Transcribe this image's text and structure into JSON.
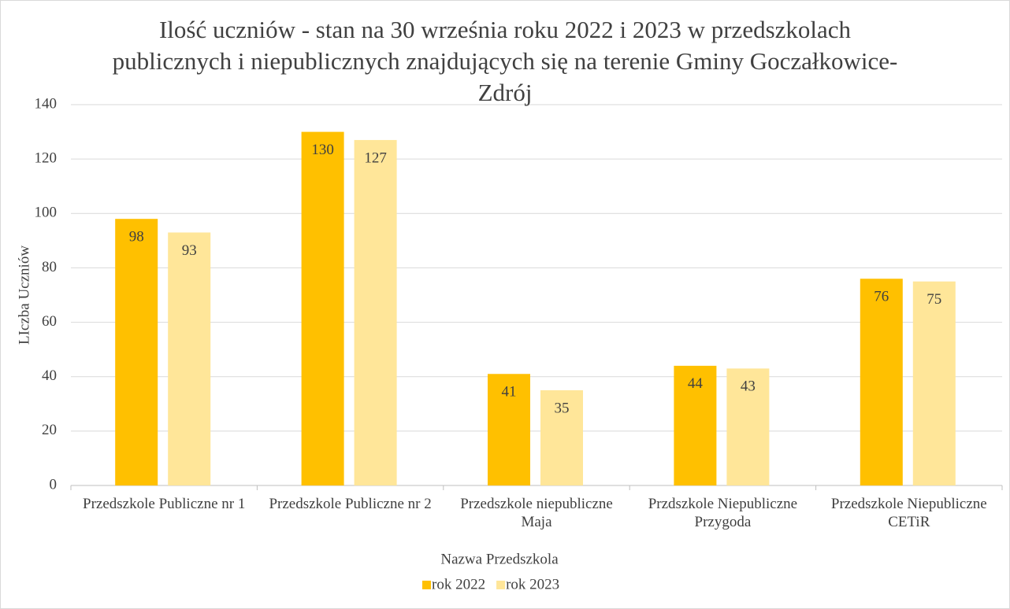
{
  "chart_data": {
    "type": "bar",
    "title": "Ilość uczniów - stan na 30 września roku 2022 i 2023 w przedszkolach publicznych i niepublicznych znajdujących się na terenie Gminy Goczałkowice-Zdrój",
    "x_label": "Nazwa Przedszkola",
    "y_label": "LIczba Uczniów",
    "categories": [
      "Przedszkole Publiczne nr 1",
      "Przedszkole Publiczne nr 2",
      "Przedszkole niepubliczne Maja",
      "Przdszkole Niepubliczne Przygoda",
      "Przedszkole Niepubliczne CETiR"
    ],
    "series": [
      {
        "name": "rok 2022",
        "color": "#ffc000",
        "values": [
          98,
          130,
          41,
          44,
          76
        ]
      },
      {
        "name": "rok 2023",
        "color": "#ffe699",
        "values": [
          93,
          127,
          35,
          43,
          75
        ]
      }
    ],
    "ylim": [
      0,
      140
    ],
    "yticks": [
      0,
      20,
      40,
      60,
      80,
      100,
      120,
      140
    ],
    "grid": true,
    "legend": "bottom"
  }
}
